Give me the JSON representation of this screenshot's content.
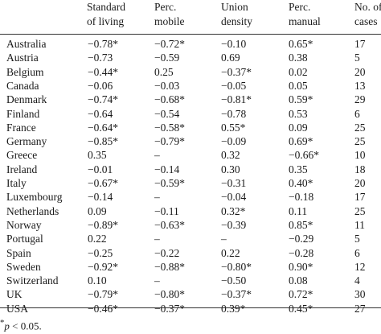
{
  "headers": [
    {
      "line1": "Standard",
      "line2": "of living"
    },
    {
      "line1": "Perc.",
      "line2": "mobile"
    },
    {
      "line1": "Union",
      "line2": "density"
    },
    {
      "line1": "Perc.",
      "line2": "manual"
    },
    {
      "line1": "No. of",
      "line2": "cases"
    }
  ],
  "rows": [
    {
      "country": "Australia",
      "values": [
        "−0.78*",
        "−0.72*",
        "−0.10",
        "0.65*",
        "17"
      ]
    },
    {
      "country": "Austria",
      "values": [
        "−0.73",
        "−0.59",
        "0.69",
        "0.38",
        "5"
      ]
    },
    {
      "country": "Belgium",
      "values": [
        "−0.44*",
        "0.25",
        "−0.37*",
        "0.02",
        "20"
      ]
    },
    {
      "country": "Canada",
      "values": [
        "−0.06",
        "−0.03",
        "−0.05",
        "0.05",
        "13"
      ]
    },
    {
      "country": "Denmark",
      "values": [
        "−0.74*",
        "−0.68*",
        "−0.81*",
        "0.59*",
        "29"
      ]
    },
    {
      "country": "Finland",
      "values": [
        "−0.64",
        "−0.54",
        "−0.78",
        "0.53",
        "6"
      ]
    },
    {
      "country": "France",
      "values": [
        "−0.64*",
        "−0.58*",
        "0.55*",
        "0.09",
        "25"
      ]
    },
    {
      "country": "Germany",
      "values": [
        "−0.85*",
        "−0.79*",
        "−0.09",
        "0.69*",
        "25"
      ]
    },
    {
      "country": "Greece",
      "values": [
        "0.35",
        "–",
        "0.32",
        "−0.66*",
        "10"
      ]
    },
    {
      "country": "Ireland",
      "values": [
        "−0.01",
        "−0.14",
        "0.30",
        "0.35",
        "18"
      ]
    },
    {
      "country": "Italy",
      "values": [
        "−0.67*",
        "−0.59*",
        "−0.31",
        "0.40*",
        "20"
      ]
    },
    {
      "country": "Luxembourg",
      "values": [
        "−0.14",
        "–",
        "−0.04",
        "−0.18",
        "17"
      ]
    },
    {
      "country": "Netherlands",
      "values": [
        "0.09",
        "−0.11",
        "0.32*",
        "0.11",
        "25"
      ]
    },
    {
      "country": "Norway",
      "values": [
        "−0.89*",
        "−0.63*",
        "−0.39",
        "0.85*",
        "11"
      ]
    },
    {
      "country": "Portugal",
      "values": [
        "0.22",
        "–",
        "–",
        "−0.29",
        "5"
      ]
    },
    {
      "country": "Spain",
      "values": [
        "−0.25",
        "−0.22",
        "0.22",
        "−0.28",
        "6"
      ]
    },
    {
      "country": "Sweden",
      "values": [
        "−0.92*",
        "−0.88*",
        "−0.80*",
        "0.90*",
        "12"
      ]
    },
    {
      "country": "Switzerland",
      "values": [
        "0.10",
        "–",
        "−0.50",
        "0.08",
        "4"
      ]
    },
    {
      "country": "UK",
      "values": [
        "−0.79*",
        "−0.80*",
        "−0.37*",
        "0.72*",
        "30"
      ]
    },
    {
      "country": "USA",
      "values": [
        "−0.46*",
        "−0.37*",
        "0.39*",
        "0.45*",
        "27"
      ]
    }
  ],
  "footnote": {
    "mark": "*",
    "var": "p",
    "text": " < 0.05."
  }
}
